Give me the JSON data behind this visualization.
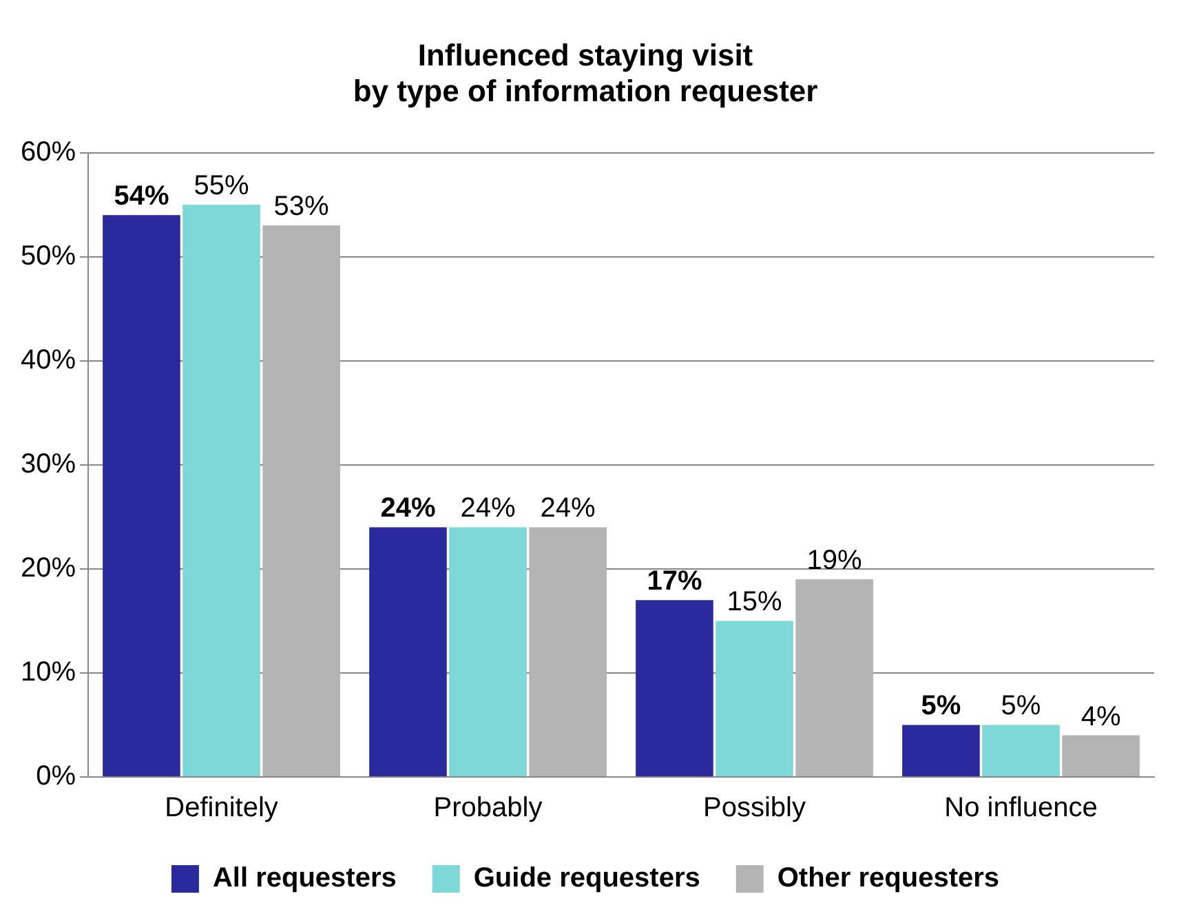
{
  "chart_data": {
    "type": "bar",
    "title": "Influenced staying visit\nby type of information requester",
    "categories": [
      "Definitely",
      "Probably",
      "Possibly",
      "No influence"
    ],
    "series": [
      {
        "name": "All requesters",
        "color": "#2a2a9c",
        "values": [
          54,
          24,
          17,
          5
        ],
        "value_labels": [
          "54%",
          "24%",
          "17%",
          "5%"
        ]
      },
      {
        "name": "Guide requesters",
        "color": "#7fd8d8",
        "values": [
          55,
          24,
          15,
          5
        ],
        "value_labels": [
          "55%",
          "24%",
          "15%",
          "5%"
        ]
      },
      {
        "name": "Other requesters",
        "color": "#b4b4b4",
        "values": [
          53,
          24,
          19,
          4
        ],
        "value_labels": [
          "53%",
          "24%",
          "19%",
          "4%"
        ]
      }
    ],
    "ylim": [
      0,
      60
    ],
    "yticks": [
      {
        "value": 0,
        "label": "0%"
      },
      {
        "value": 10,
        "label": "10%"
      },
      {
        "value": 20,
        "label": "20%"
      },
      {
        "value": 30,
        "label": "30%"
      },
      {
        "value": 40,
        "label": "40%"
      },
      {
        "value": 50,
        "label": "50%"
      },
      {
        "value": 60,
        "label": "60%"
      }
    ],
    "grid": "y",
    "legend": "bottom"
  }
}
